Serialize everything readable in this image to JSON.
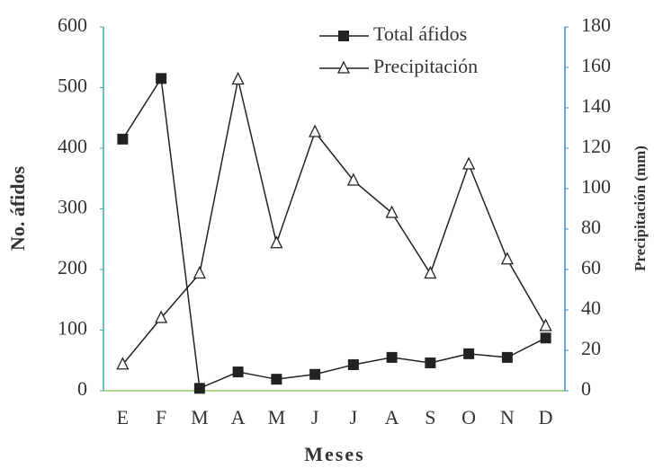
{
  "chart_data": {
    "type": "line",
    "categories": [
      "E",
      "F",
      "M",
      "A",
      "M",
      "J",
      "J",
      "A",
      "S",
      "O",
      "N",
      "D"
    ],
    "x_label": "Meses",
    "y_label": "No. áfidos",
    "y2_label": "Precipitación (mm)",
    "ylim": [
      0,
      600
    ],
    "yticks": [
      0,
      100,
      200,
      300,
      400,
      500,
      600
    ],
    "y2lim": [
      0,
      180
    ],
    "y2ticks": [
      0,
      20,
      40,
      60,
      80,
      100,
      120,
      140,
      160,
      180
    ],
    "legend": "top",
    "series": [
      {
        "name": "Total áfidos",
        "color": "#222222",
        "marker": "square",
        "values": [
          415,
          515,
          4,
          31,
          19,
          27,
          43,
          55,
          46,
          61,
          55,
          87
        ]
      },
      {
        "name": "Precipitación",
        "color": "#222222",
        "marker": "triangle",
        "axis": "y2",
        "values": [
          13,
          36,
          58,
          154,
          73,
          128,
          104,
          88,
          58,
          112,
          65,
          32
        ]
      }
    ]
  }
}
